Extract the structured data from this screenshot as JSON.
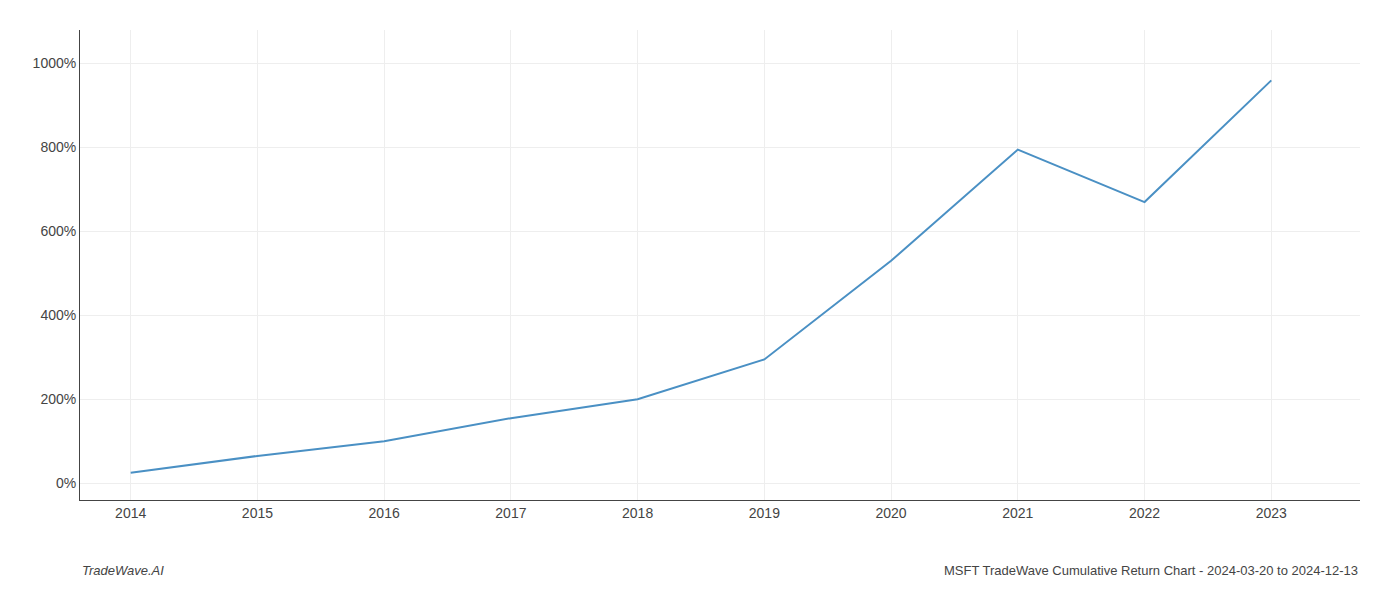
{
  "chart_data": {
    "type": "line",
    "x": [
      2014,
      2015,
      2016,
      2017,
      2018,
      2019,
      2020,
      2021,
      2022,
      2023
    ],
    "values": [
      25,
      65,
      100,
      155,
      200,
      295,
      530,
      795,
      670,
      960
    ],
    "color": "#4a90c4",
    "xlim": [
      2013.6,
      2023.7
    ],
    "xticks": [
      2014,
      2015,
      2016,
      2017,
      2018,
      2019,
      2020,
      2021,
      2022,
      2023
    ],
    "ylim": [
      -40,
      1080
    ],
    "yticks": [
      {
        "value": 0,
        "label": "0%"
      },
      {
        "value": 200,
        "label": "200%"
      },
      {
        "value": 400,
        "label": "400%"
      },
      {
        "value": 600,
        "label": "600%"
      },
      {
        "value": 800,
        "label": "800%"
      },
      {
        "value": 1000,
        "label": "1000%"
      }
    ],
    "grid": true,
    "annotations": [
      "TradeWave.AI",
      "MSFT TradeWave Cumulative Return Chart - 2024-03-20 to 2024-12-13"
    ]
  }
}
